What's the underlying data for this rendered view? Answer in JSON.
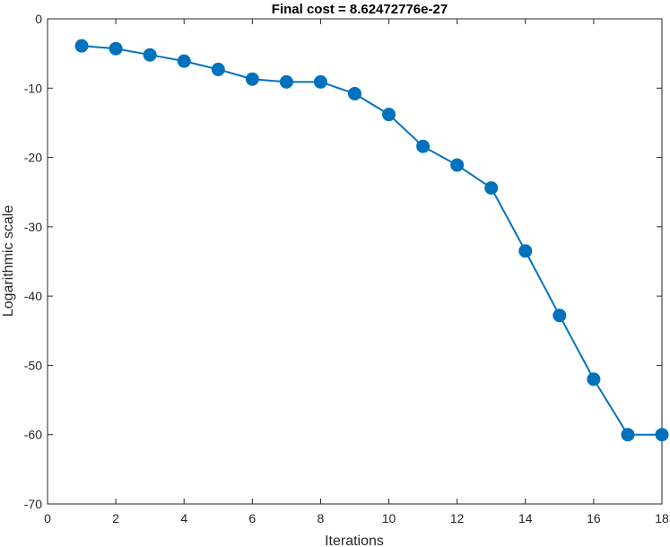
{
  "chart_data": {
    "type": "line",
    "title": "Final cost = 8.62472776e-27",
    "xlabel": "Iterations",
    "ylabel": "Logarithmic scale",
    "xlim": [
      0,
      18
    ],
    "ylim": [
      -70,
      0
    ],
    "xticks": [
      0,
      2,
      4,
      6,
      8,
      10,
      12,
      14,
      16,
      18
    ],
    "yticks": [
      0,
      -10,
      -20,
      -30,
      -40,
      -50,
      -60,
      -70
    ],
    "grid": false,
    "legend": "none",
    "series": [
      {
        "color": "#0072BD",
        "marker": "circle",
        "x": [
          1,
          2,
          3,
          4,
          5,
          6,
          7,
          8,
          9,
          10,
          11,
          12,
          13,
          14,
          15,
          16,
          17,
          18
        ],
        "y": [
          -3.9,
          -4.3,
          -5.2,
          -6.1,
          -7.3,
          -8.7,
          -9.1,
          -9.1,
          -10.8,
          -13.8,
          -18.4,
          -21.1,
          -24.4,
          -33.5,
          -42.8,
          -52.0,
          -60.0,
          -60.0
        ]
      }
    ]
  }
}
